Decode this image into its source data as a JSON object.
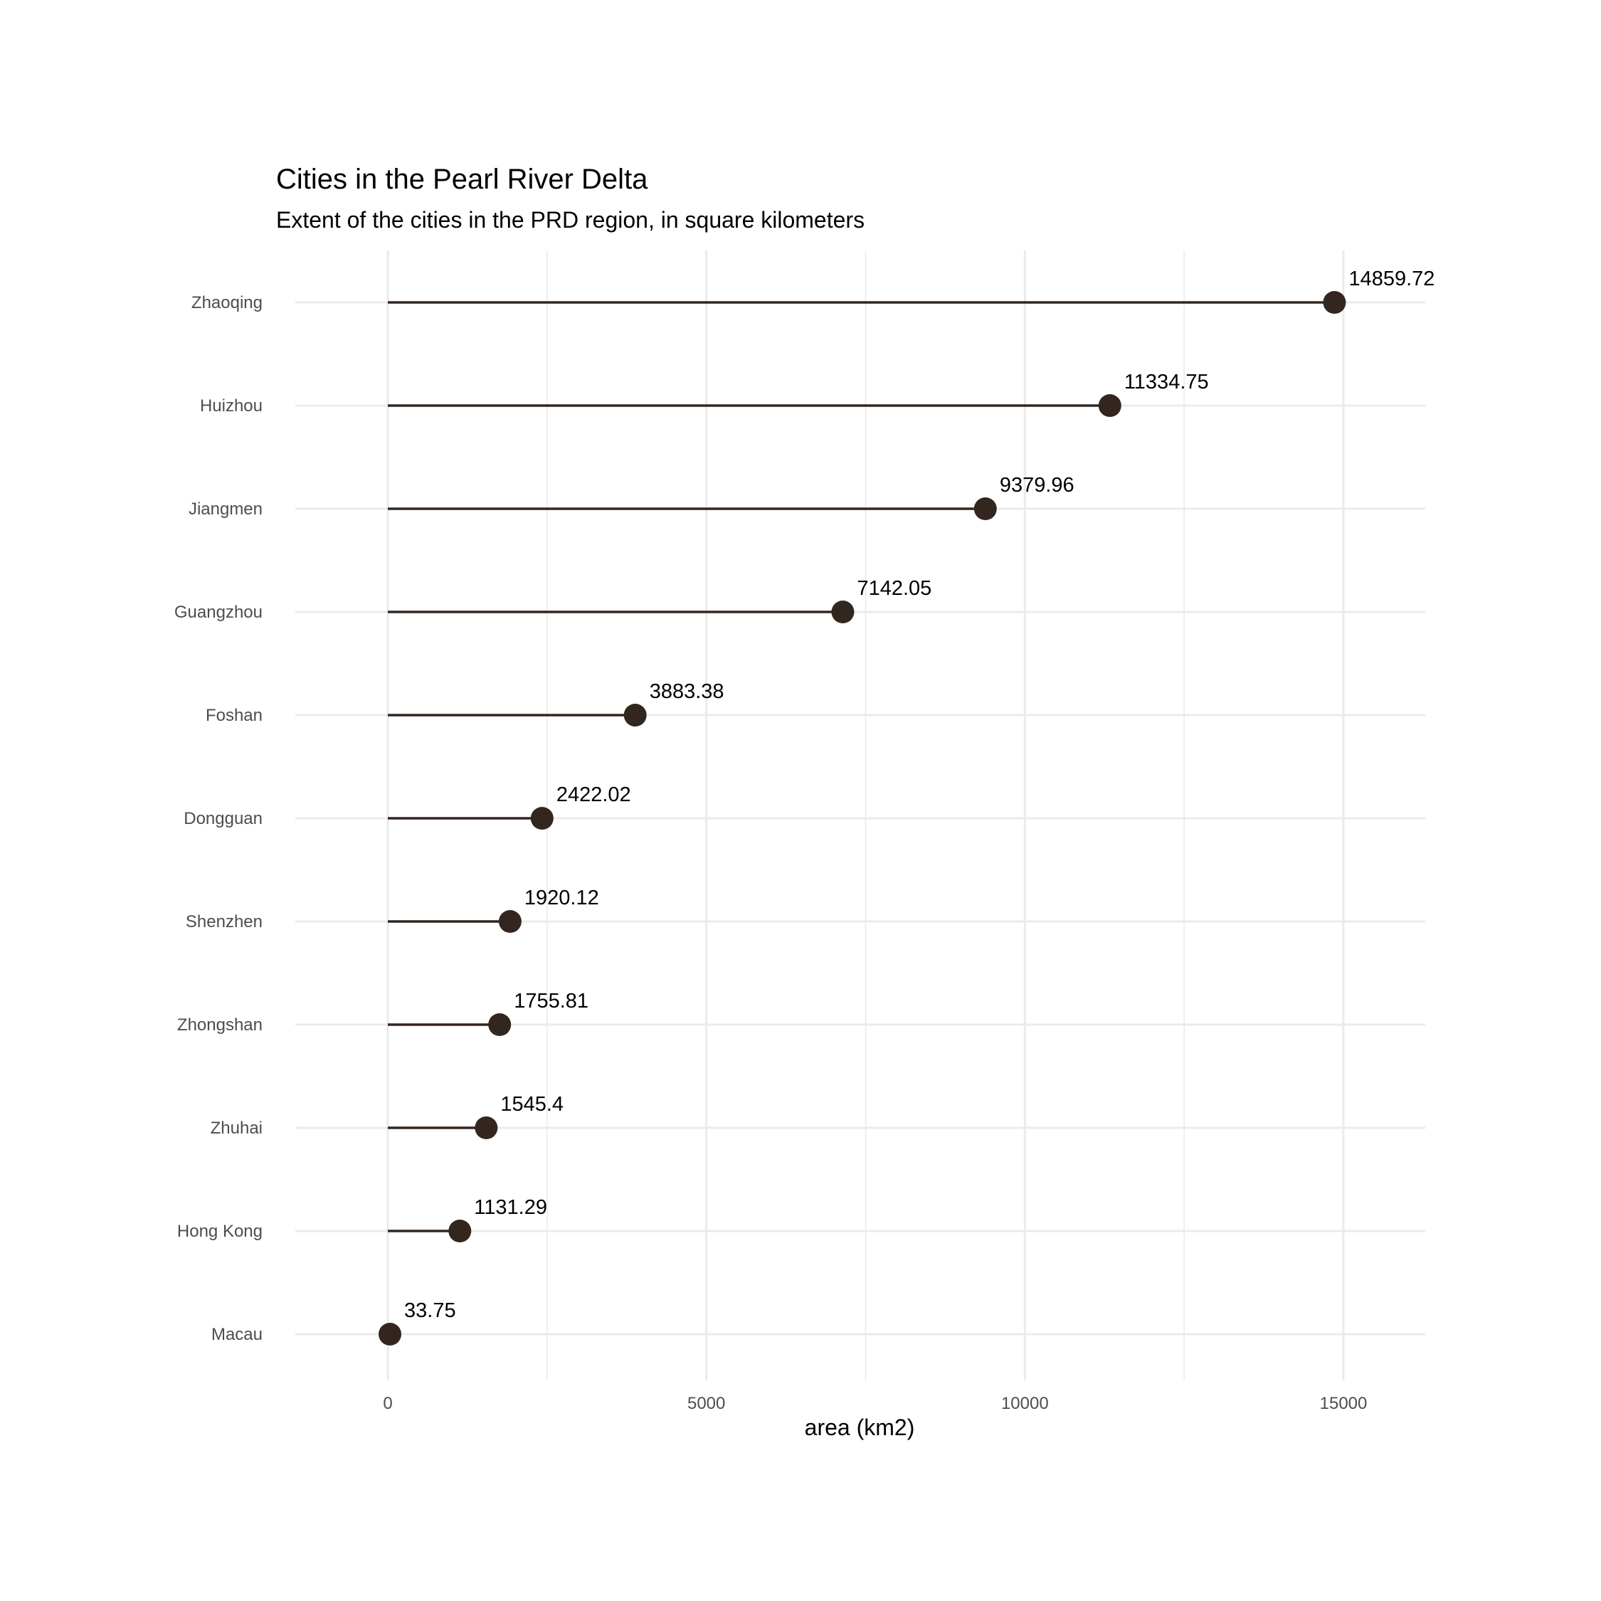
{
  "chart_data": {
    "type": "lollipop",
    "title": "Cities in the Pearl River Delta",
    "subtitle": "Extent of the cities in the PRD region, in square kilometers",
    "xlabel": "area (km2)",
    "ylabel": "",
    "xlim": [
      0,
      15000
    ],
    "x_ticks": [
      0,
      5000,
      10000,
      15000
    ],
    "x_tick_labels": [
      "0",
      "5000",
      "10000",
      "15000"
    ],
    "orientation": "horizontal",
    "grid": true,
    "legend": "none",
    "categories": [
      "Zhaoqing",
      "Huizhou",
      "Jiangmen",
      "Guangzhou",
      "Foshan",
      "Dongguan",
      "Shenzhen",
      "Zhongshan",
      "Zhuhai",
      "Hong Kong",
      "Macau"
    ],
    "values": [
      14859.72,
      11334.75,
      9379.96,
      7142.05,
      3883.38,
      2422.02,
      1920.12,
      1755.81,
      1545.4,
      1131.29,
      33.75
    ],
    "value_labels": [
      "14859.72",
      "11334.75",
      "9379.96",
      "7142.05",
      "3883.38",
      "2422.02",
      "1920.12",
      "1755.81",
      "1545.4",
      "1131.29",
      "33.75"
    ],
    "colors": {
      "mark": "#33261f",
      "grid": "#ebebeb"
    }
  }
}
